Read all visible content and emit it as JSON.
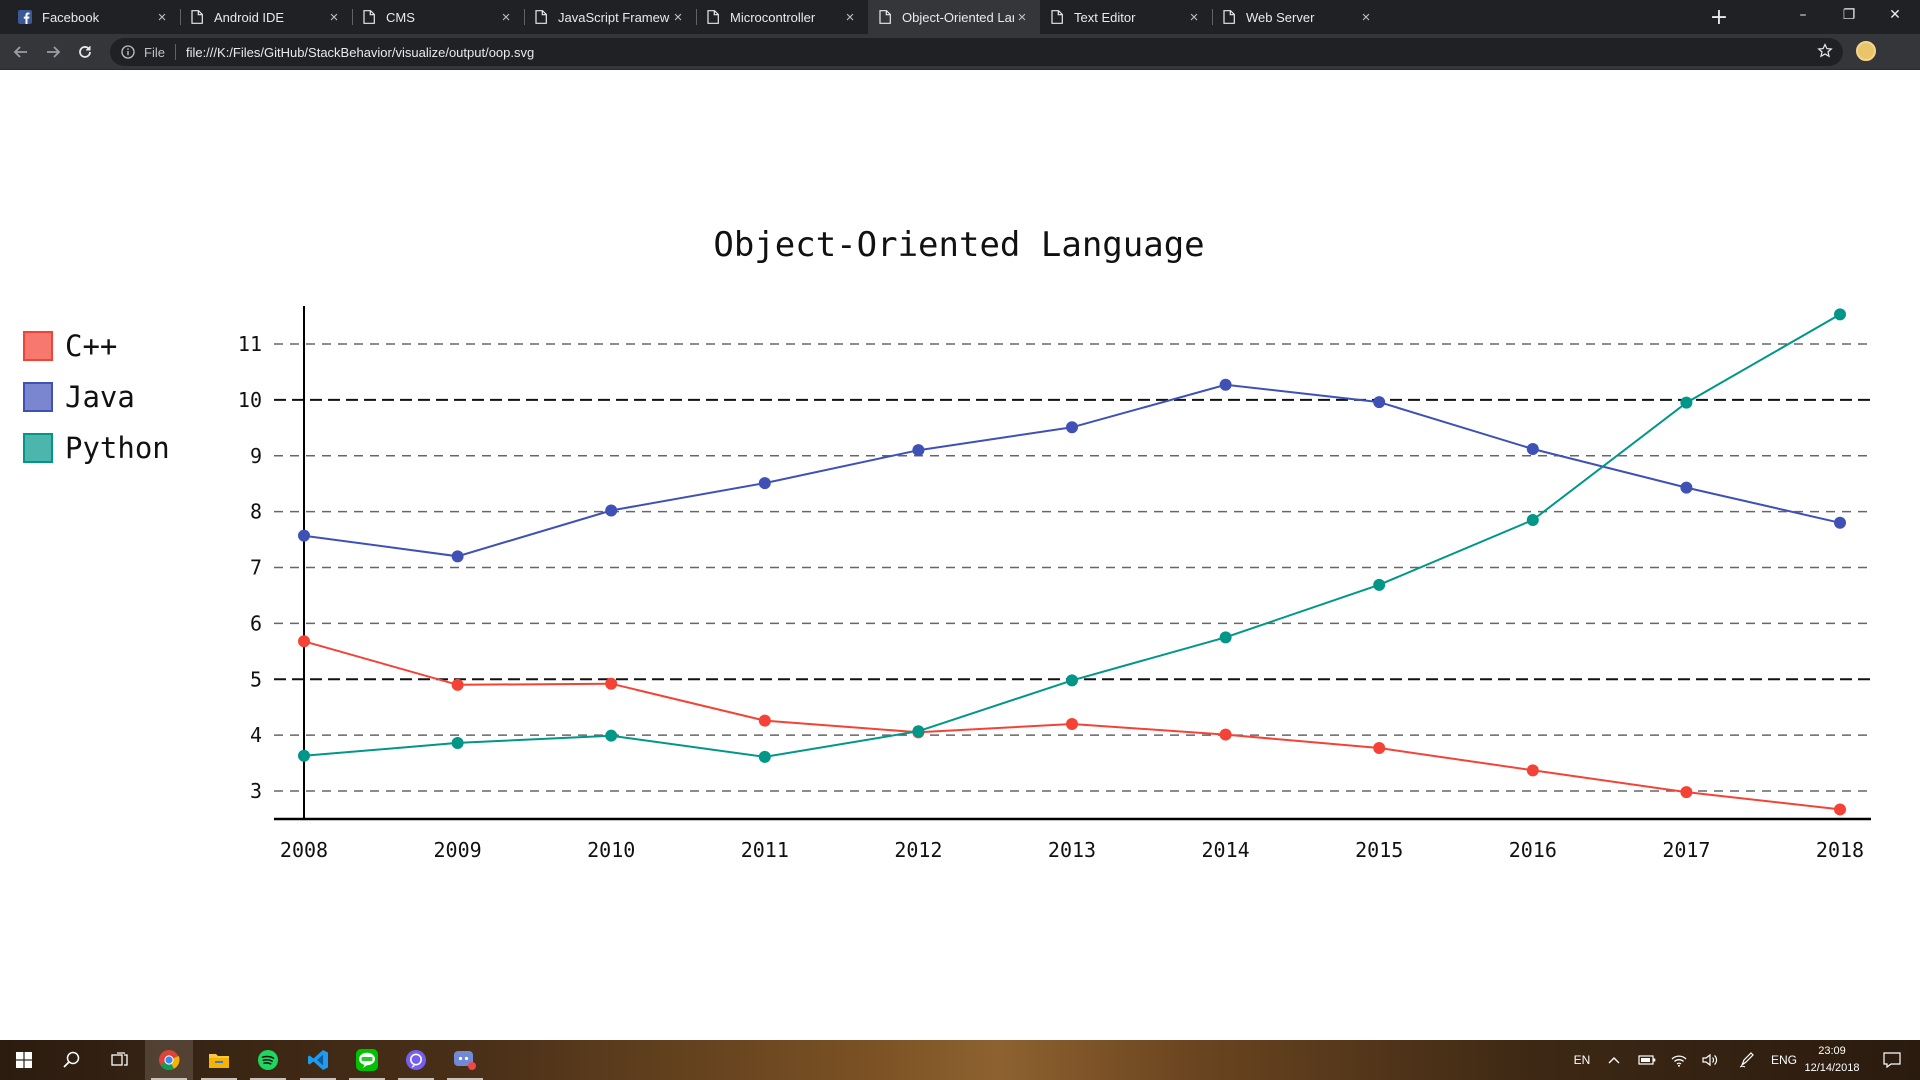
{
  "browser": {
    "tabs": [
      {
        "label": "Facebook",
        "icon": "facebook-icon",
        "active": false
      },
      {
        "label": "Android IDE",
        "icon": "page-icon",
        "active": false
      },
      {
        "label": "CMS",
        "icon": "page-icon",
        "active": false
      },
      {
        "label": "JavaScript Framework/Libra",
        "icon": "page-icon",
        "active": false
      },
      {
        "label": "Microcontroller",
        "icon": "page-icon",
        "active": false
      },
      {
        "label": "Object-Oriented Language",
        "icon": "page-icon",
        "active": true
      },
      {
        "label": "Text Editor",
        "icon": "page-icon",
        "active": false
      },
      {
        "label": "Web Server",
        "icon": "page-icon",
        "active": false
      }
    ],
    "close_glyph": "×",
    "new_tab_glyph": "+",
    "window_controls": {
      "minimize": "–",
      "restore": "❐",
      "close": "✕"
    },
    "omnibox": {
      "scheme_label": "File",
      "url": "file:///K:/Files/GitHub/StackBehavior/visualize/output/oop.svg"
    },
    "colors": {
      "tabbar": "#202124",
      "active_tab": "#35363a",
      "omnibox": "#202124"
    }
  },
  "chart_data": {
    "type": "line",
    "title": "Object-Oriented Language",
    "xlabel": "",
    "ylabel": "",
    "x": [
      2008,
      2009,
      2010,
      2011,
      2012,
      2013,
      2014,
      2015,
      2016,
      2017,
      2018
    ],
    "x_tick_labels": [
      "2008",
      "2009",
      "2010",
      "2011",
      "2012",
      "2013",
      "2014",
      "2015",
      "2016",
      "2017",
      "2018"
    ],
    "y_ticks": [
      3,
      4,
      5,
      6,
      7,
      8,
      9,
      10,
      11
    ],
    "y_tick_labels": [
      "3",
      "4",
      "5",
      "6",
      "7",
      "8",
      "9",
      "10",
      "11"
    ],
    "major_y_ticks": [
      5,
      10
    ],
    "ylim": [
      2.5,
      11.7
    ],
    "grid": "horizontal dashed",
    "legend_position": "left",
    "series": [
      {
        "name": "C++",
        "color": "#f44336",
        "legend_color": "#f6786e",
        "values": [
          5.68,
          4.9,
          4.92,
          4.26,
          4.05,
          4.2,
          4.01,
          3.77,
          3.37,
          2.98,
          2.67
        ]
      },
      {
        "name": "Java",
        "color": "#3f51b5",
        "legend_color": "#7a86cd",
        "values": [
          7.57,
          7.2,
          8.02,
          8.51,
          9.1,
          9.51,
          10.27,
          9.96,
          9.12,
          8.43,
          7.8
        ]
      },
      {
        "name": "Python",
        "color": "#009688",
        "legend_color": "#4db6ac",
        "values": [
          3.63,
          3.86,
          3.99,
          3.61,
          4.07,
          4.98,
          5.75,
          6.69,
          7.85,
          9.95,
          11.53
        ]
      }
    ]
  },
  "taskbar": {
    "apps": [
      {
        "name": "search-icon"
      },
      {
        "name": "task-view-icon"
      },
      {
        "name": "chrome-icon",
        "running": true,
        "active": true
      },
      {
        "name": "file-explorer-icon",
        "running": true
      },
      {
        "name": "spotify-icon",
        "running": true
      },
      {
        "name": "vscode-icon",
        "running": true
      },
      {
        "name": "line-icon",
        "running": true
      },
      {
        "name": "viber-icon",
        "running": true
      },
      {
        "name": "discord-icon",
        "running": true
      }
    ],
    "tray": {
      "lang_short": "EN",
      "lang_long": "ENG"
    },
    "clock": {
      "time": "23:09",
      "date": "12/14/2018"
    }
  }
}
